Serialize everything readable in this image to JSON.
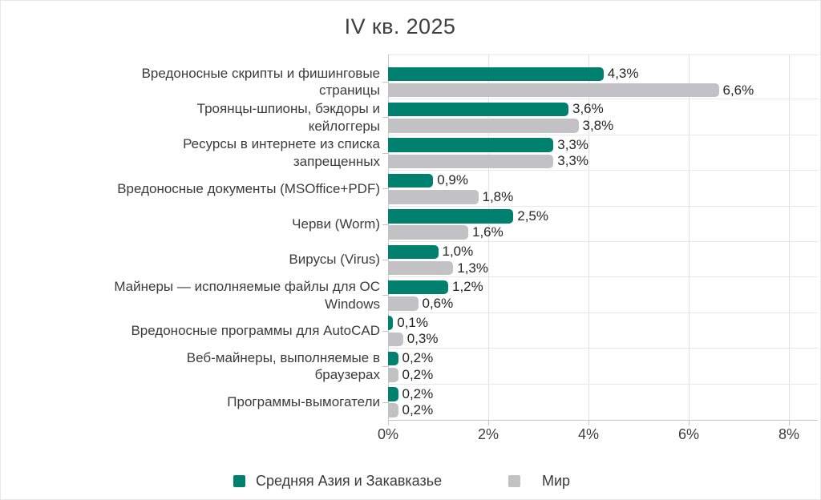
{
  "title": "IV кв. 2025",
  "chart_data": {
    "type": "bar",
    "orientation": "horizontal",
    "title": "IV кв. 2025",
    "xlabel": "",
    "ylabel": "",
    "xlim": [
      0,
      8
    ],
    "x_ticks": [
      "0%",
      "2%",
      "4%",
      "6%",
      "8%"
    ],
    "grid": true,
    "legend_position": "bottom",
    "categories": [
      "Вредоносные скрипты и фишинговые\nстраницы",
      "Троянцы-шпионы, бэкдоры и\nкейлоггеры",
      "Ресурсы в интернете из списка\nзапрещенных",
      "Вредоносные документы (MSOffice+PDF)",
      "Черви (Worm)",
      "Вирусы (Virus)",
      "Майнеры — исполняемые файлы для ОС\nWindows",
      "Вредоносные программы для AutoCAD",
      "Веб-майнеры, выполняемые в\nбраузерах",
      "Программы-вымогатели"
    ],
    "series": [
      {
        "name": "Средняя Азия и Закавказье",
        "color": "#00816F",
        "values": [
          4.3,
          3.6,
          3.3,
          0.9,
          2.5,
          1.0,
          1.2,
          0.1,
          0.2,
          0.2
        ],
        "labels": [
          "4,3%",
          "3,6%",
          "3,3%",
          "0,9%",
          "2,5%",
          "1,0%",
          "1,2%",
          "0,1%",
          "0,2%",
          "0,2%"
        ]
      },
      {
        "name": "Мир",
        "color": "#C2C2C4",
        "values": [
          6.6,
          3.8,
          3.3,
          1.8,
          1.6,
          1.3,
          0.6,
          0.3,
          0.2,
          0.2
        ],
        "labels": [
          "6,6%",
          "3,8%",
          "3,3%",
          "1,8%",
          "1,6%",
          "1,3%",
          "0,6%",
          "0,3%",
          "0,2%",
          "0,2%"
        ]
      }
    ]
  }
}
